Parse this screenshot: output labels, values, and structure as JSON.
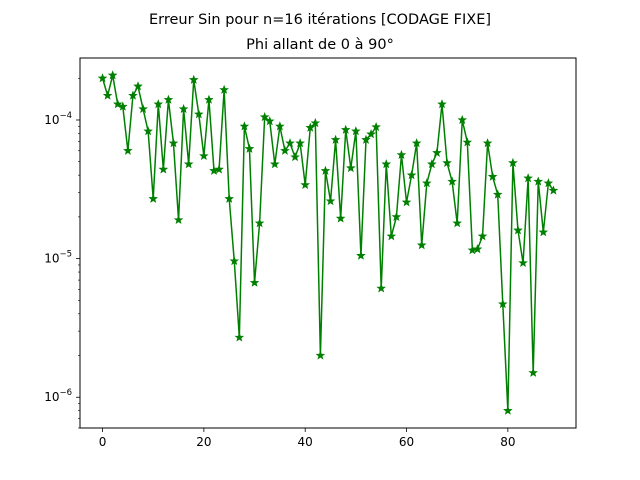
{
  "chart_data": {
    "type": "line",
    "title": "Erreur Sin pour n=16 itérations [CODAGE FIXE]",
    "subtitle": "Phi allant de 0 à 90°",
    "xlabel": "",
    "ylabel": "",
    "xlim": [
      -4.45,
      93.45
    ],
    "ylim": [
      6e-07,
      0.00028
    ],
    "yscale": "log",
    "grid": false,
    "x_ticks": [
      {
        "value": 0,
        "label": "0"
      },
      {
        "value": 20,
        "label": "20"
      },
      {
        "value": 40,
        "label": "40"
      },
      {
        "value": 60,
        "label": "60"
      },
      {
        "value": 80,
        "label": "80"
      }
    ],
    "y_ticks": [
      {
        "value": 1e-06,
        "base": "10",
        "exp": "−6"
      },
      {
        "value": 1e-05,
        "base": "10",
        "exp": "−5"
      },
      {
        "value": 0.0001,
        "base": "10",
        "exp": "−4"
      }
    ],
    "series": [
      {
        "color": "#008000",
        "marker": "star",
        "x": [
          0,
          1,
          2,
          3,
          4,
          5,
          6,
          7,
          8,
          9,
          10,
          11,
          12,
          13,
          14,
          15,
          16,
          17,
          18,
          19,
          20,
          21,
          22,
          23,
          24,
          25,
          26,
          27,
          28,
          29,
          30,
          31,
          32,
          33,
          34,
          35,
          36,
          37,
          38,
          39,
          40,
          41,
          42,
          43,
          44,
          45,
          46,
          47,
          48,
          49,
          50,
          51,
          52,
          53,
          54,
          55,
          56,
          57,
          58,
          59,
          60,
          61,
          62,
          63,
          64,
          65,
          66,
          67,
          68,
          69,
          70,
          71,
          72,
          73,
          74,
          75,
          76,
          77,
          78,
          79,
          80,
          81,
          82,
          83,
          84,
          85,
          86,
          87,
          88,
          89
        ],
        "values": [
          0.0002,
          0.00015,
          0.00021,
          0.00013,
          0.000125,
          6e-05,
          0.00015,
          0.000175,
          0.00012,
          8.3e-05,
          2.7e-05,
          0.00013,
          4.4e-05,
          0.00014,
          6.8e-05,
          1.9e-05,
          0.00012,
          4.8e-05,
          0.000195,
          0.00011,
          5.5e-05,
          0.00014,
          4.3e-05,
          4.4e-05,
          0.000165,
          2.7e-05,
          9.6e-06,
          2.7e-06,
          9e-05,
          6.2e-05,
          6.7e-06,
          1.8e-05,
          0.000105,
          9.8e-05,
          4.8e-05,
          9e-05,
          6e-05,
          6.8e-05,
          5.4e-05,
          6.8e-05,
          3.4e-05,
          8.8e-05,
          9.5e-05,
          2e-06,
          4.3e-05,
          2.6e-05,
          7.2e-05,
          1.95e-05,
          8.5e-05,
          4.5e-05,
          8.3e-05,
          1.05e-05,
          7.2e-05,
          7.9e-05,
          8.9e-05,
          6.1e-06,
          4.8e-05,
          1.45e-05,
          2e-05,
          5.6e-05,
          2.55e-05,
          4e-05,
          6.8e-05,
          1.25e-05,
          3.5e-05,
          4.8e-05,
          5.8e-05,
          0.00013,
          4.9e-05,
          3.6e-05,
          1.8e-05,
          0.0001,
          6.9e-05,
          1.15e-05,
          1.17e-05,
          1.45e-05,
          6.8e-05,
          3.9e-05,
          2.9e-05,
          4.7e-06,
          8e-07,
          4.9e-05,
          1.6e-05,
          9.3e-06,
          3.8e-05,
          1.5e-06,
          3.6e-05,
          1.55e-05,
          3.5e-05,
          3.1e-05
        ]
      }
    ]
  }
}
